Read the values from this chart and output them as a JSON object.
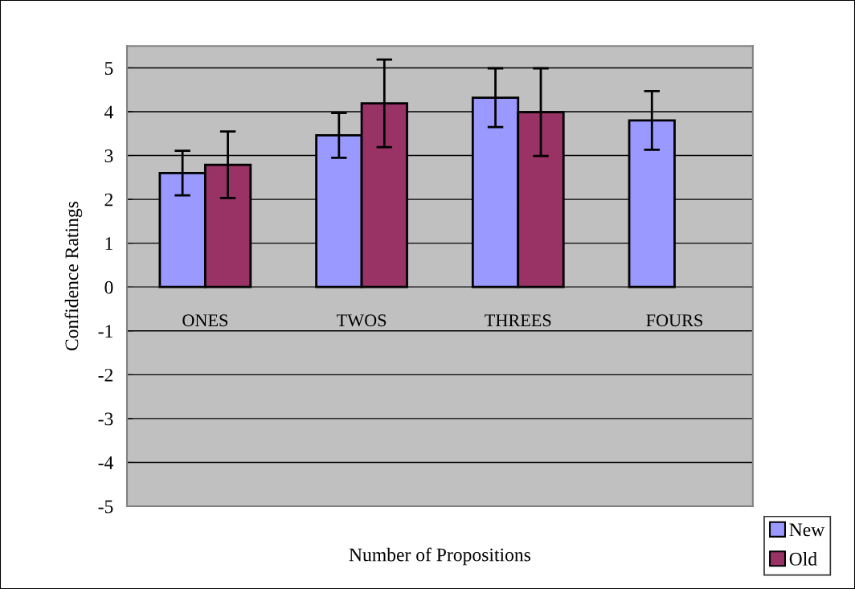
{
  "chart_data": {
    "type": "bar",
    "xlabel": "Number of Propositions",
    "ylabel": "Confidence Ratings",
    "categories": [
      "ONES",
      "TWOS",
      "THREES",
      "FOURS"
    ],
    "series": [
      {
        "name": "New",
        "color": "#9999ff",
        "values": [
          2.6,
          3.46,
          4.32,
          3.8
        ],
        "errors": [
          0.51,
          0.51,
          0.67,
          0.67
        ]
      },
      {
        "name": "Old",
        "color": "#993366",
        "values": [
          2.79,
          4.19,
          3.99,
          null
        ],
        "errors": [
          0.76,
          1.0,
          1.0,
          null
        ]
      }
    ],
    "ylim": [
      -5,
      5.5
    ],
    "yticks": [
      -5,
      -4,
      -3,
      -2,
      -1,
      0,
      1,
      2,
      3,
      4,
      5
    ],
    "grid": "y",
    "legend": "bottom right"
  }
}
